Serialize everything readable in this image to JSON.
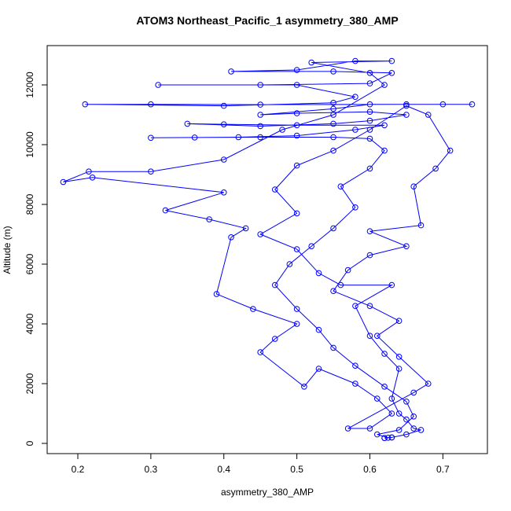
{
  "chart_data": {
    "type": "line",
    "points": true,
    "title": "ATOM3 Northeast_Pacific_1 asymmetry_380_AMP",
    "x_label": "asymmetry_380_AMP",
    "y_label": "Altitude (m)",
    "xlim": [
      0.158,
      0.761
    ],
    "ylim": [
      -342,
      13316
    ],
    "xticks": [
      0.2,
      0.3,
      0.4,
      0.5,
      0.6,
      0.7
    ],
    "yticks": [
      0,
      2000,
      4000,
      6000,
      8000,
      10000,
      12000
    ],
    "x": [
      0.62,
      0.63,
      0.625,
      0.61,
      0.64,
      0.66,
      0.65,
      0.62,
      0.58,
      0.55,
      0.53,
      0.5,
      0.47,
      0.49,
      0.52,
      0.55,
      0.58,
      0.56,
      0.6,
      0.62,
      0.6,
      0.55,
      0.45,
      0.36,
      0.3,
      0.42,
      0.5,
      0.58,
      0.62,
      0.5,
      0.4,
      0.35,
      0.45,
      0.55,
      0.6,
      0.65,
      0.6,
      0.5,
      0.45,
      0.55,
      0.6,
      0.7,
      0.74,
      0.65,
      0.45,
      0.3,
      0.21,
      0.4,
      0.55,
      0.58,
      0.5,
      0.31,
      0.45,
      0.6,
      0.63,
      0.55,
      0.41,
      0.5,
      0.58,
      0.63,
      0.52,
      0.6,
      0.62,
      0.55,
      0.48,
      0.4,
      0.3,
      0.215,
      0.18,
      0.22,
      0.4,
      0.32,
      0.38,
      0.43,
      0.41,
      0.39,
      0.44,
      0.5,
      0.47,
      0.45,
      0.51,
      0.53,
      0.58,
      0.61,
      0.63,
      0.6,
      0.57,
      0.66,
      0.68,
      0.64,
      0.61,
      0.64,
      0.6,
      0.55,
      0.57,
      0.6,
      0.65,
      0.6,
      0.67,
      0.66,
      0.69,
      0.71,
      0.68,
      0.65,
      0.6,
      0.55,
      0.5,
      0.47,
      0.5,
      0.45,
      0.5,
      0.53,
      0.56,
      0.63,
      0.58,
      0.6,
      0.62,
      0.64,
      0.63,
      0.64,
      0.65,
      0.66,
      0.67,
      0.65,
      0.63,
      0.62
    ],
    "series": [
      {
        "color": "#0000ff",
        "values": [
          180,
          200,
          190,
          300,
          450,
          900,
          1400,
          1900,
          2600,
          3200,
          3800,
          4500,
          5300,
          6000,
          6600,
          7200,
          7900,
          8600,
          9200,
          9800,
          10200,
          10250,
          10250,
          10240,
          10230,
          10250,
          10300,
          10500,
          10650,
          10650,
          10680,
          10700,
          10620,
          10700,
          10800,
          11000,
          11100,
          11050,
          11000,
          11200,
          11350,
          11350,
          11350,
          11350,
          11340,
          11350,
          11350,
          11300,
          11400,
          11600,
          12000,
          12000,
          12000,
          12050,
          12400,
          12450,
          12450,
          12500,
          12800,
          12800,
          12750,
          12400,
          12000,
          11000,
          10500,
          9500,
          9100,
          9100,
          8750,
          8900,
          8400,
          7800,
          7500,
          7200,
          6900,
          5000,
          4500,
          4000,
          3500,
          3050,
          1900,
          2500,
          2000,
          1500,
          1000,
          500,
          500,
          1700,
          2000,
          2900,
          3600,
          4100,
          4600,
          5100,
          5800,
          6300,
          6600,
          7100,
          7300,
          8600,
          9200,
          9800,
          11000,
          11300,
          10500,
          9800,
          9300,
          8500,
          7700,
          7000,
          6500,
          5700,
          5300,
          5300,
          4600,
          3600,
          3000,
          2500,
          1500,
          1000,
          800,
          500,
          450,
          300,
          200,
          180
        ]
      }
    ]
  }
}
